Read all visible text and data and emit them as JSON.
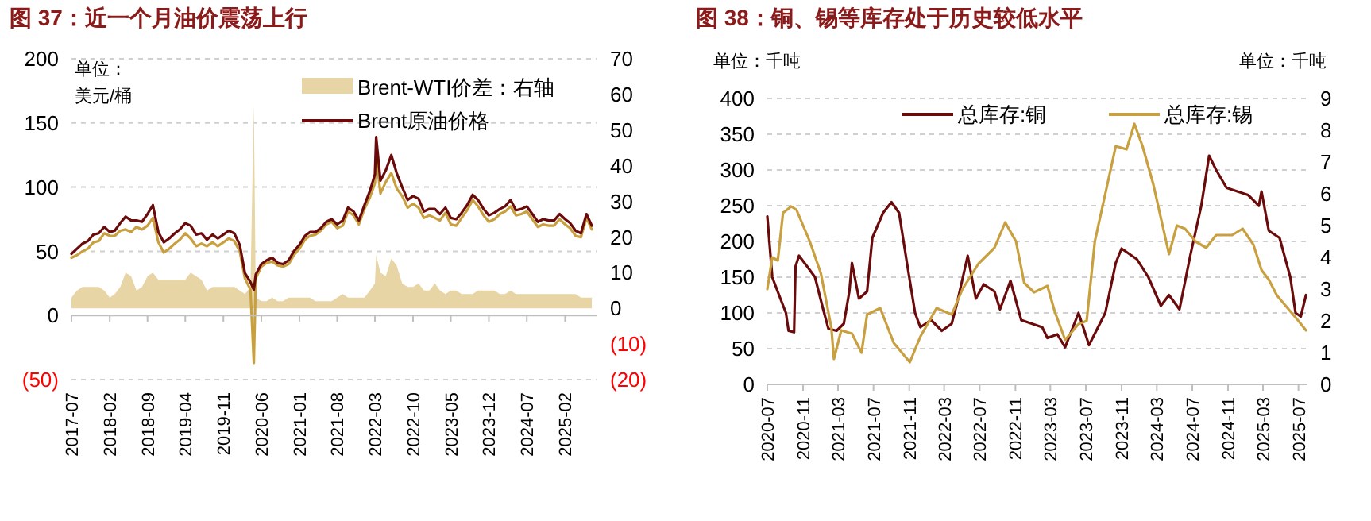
{
  "chart_data": [
    {
      "type": "line",
      "title": "图 37：近一个月油价震荡上行",
      "ylabel": "单位：美元/桶",
      "x": [
        "2017-07",
        "2017-08",
        "2017-09",
        "2017-10",
        "2017-11",
        "2017-12",
        "2018-01",
        "2018-02",
        "2018-03",
        "2018-04",
        "2018-05",
        "2018-06",
        "2018-07",
        "2018-08",
        "2018-09",
        "2018-10",
        "2018-11",
        "2018-12",
        "2019-01",
        "2019-02",
        "2019-03",
        "2019-04",
        "2019-05",
        "2019-06",
        "2019-07",
        "2019-08",
        "2019-09",
        "2019-10",
        "2019-11",
        "2019-12",
        "2020-01",
        "2020-02",
        "2020-03",
        "2020-04",
        "2020-04-20",
        "2020-05",
        "2020-06",
        "2020-07",
        "2020-08",
        "2020-09",
        "2020-10",
        "2020-11",
        "2020-12",
        "2021-01",
        "2021-02",
        "2021-03",
        "2021-04",
        "2021-05",
        "2021-06",
        "2021-07",
        "2021-08",
        "2021-09",
        "2021-10",
        "2021-11",
        "2021-12",
        "2022-01",
        "2022-02",
        "2022-03",
        "2022-03-08",
        "2022-04",
        "2022-05",
        "2022-06",
        "2022-07",
        "2022-08",
        "2022-09",
        "2022-10",
        "2022-11",
        "2022-12",
        "2023-01",
        "2023-02",
        "2023-03",
        "2023-04",
        "2023-05",
        "2023-06",
        "2023-07",
        "2023-08",
        "2023-09",
        "2023-10",
        "2023-11",
        "2023-12",
        "2024-01",
        "2024-02",
        "2024-03",
        "2024-04",
        "2024-05",
        "2024-06",
        "2024-07",
        "2024-08",
        "2024-09",
        "2024-10",
        "2024-11",
        "2024-12",
        "2025-01",
        "2025-02",
        "2025-03",
        "2025-04",
        "2025-05",
        "2025-06",
        "2025-07"
      ],
      "series": [
        {
          "name": "Brent-WTI价差：右轴",
          "type": "area",
          "axis": "y2",
          "color": "#e8d5a6",
          "values": [
            3,
            5,
            6,
            6,
            6,
            6,
            5,
            3,
            4,
            6,
            10,
            9,
            5,
            6,
            9,
            10,
            8,
            8,
            8,
            8,
            8,
            8,
            10,
            9,
            8,
            5,
            6,
            6,
            6,
            6,
            6,
            5,
            4,
            6,
            57,
            3,
            2,
            2,
            3,
            2,
            2,
            3,
            3,
            3,
            3,
            3,
            2,
            2,
            2,
            2,
            3,
            4,
            3,
            3,
            3,
            3,
            5,
            7,
            15,
            10,
            9,
            14,
            12,
            7,
            6,
            6,
            7,
            5,
            5,
            7,
            5,
            4,
            5,
            5,
            4,
            4,
            4,
            5,
            5,
            5,
            5,
            4,
            4,
            5,
            4,
            4,
            4,
            4,
            4,
            4,
            4,
            4,
            4,
            4,
            4,
            4,
            3,
            3,
            3
          ]
        },
        {
          "color": "#c9a040",
          "values": [
            45,
            47,
            50,
            52,
            57,
            58,
            64,
            62,
            62,
            66,
            67,
            65,
            69,
            67,
            70,
            76,
            57,
            49,
            52,
            56,
            59,
            64,
            60,
            54,
            56,
            54,
            57,
            54,
            57,
            60,
            58,
            50,
            29,
            20,
            -37,
            29,
            38,
            41,
            42,
            39,
            38,
            40,
            47,
            52,
            59,
            62,
            63,
            66,
            71,
            73,
            68,
            70,
            81,
            78,
            71,
            83,
            92,
            103,
            124,
            95,
            104,
            111,
            99,
            93,
            84,
            87,
            84,
            76,
            78,
            76,
            74,
            80,
            71,
            70,
            76,
            82,
            90,
            85,
            78,
            73,
            75,
            79,
            81,
            85,
            78,
            79,
            81,
            75,
            69,
            71,
            70,
            70,
            75,
            71,
            68,
            62,
            61,
            76,
            67
          ]
        },
        {
          "name": "Brent原油价格",
          "color": "#6b0a0a",
          "values": [
            48,
            52,
            56,
            58,
            63,
            64,
            69,
            65,
            66,
            72,
            77,
            74,
            74,
            73,
            79,
            86,
            65,
            57,
            60,
            64,
            67,
            72,
            70,
            63,
            64,
            59,
            63,
            60,
            63,
            66,
            64,
            55,
            33,
            26,
            20,
            32,
            40,
            43,
            45,
            41,
            40,
            43,
            50,
            55,
            62,
            65,
            65,
            68,
            73,
            75,
            71,
            74,
            84,
            81,
            74,
            86,
            97,
            110,
            139,
            105,
            113,
            125,
            111,
            100,
            90,
            93,
            91,
            81,
            83,
            83,
            79,
            84,
            76,
            75,
            80,
            86,
            94,
            90,
            83,
            78,
            80,
            83,
            85,
            90,
            82,
            83,
            85,
            79,
            73,
            75,
            74,
            74,
            79,
            75,
            72,
            66,
            64,
            79,
            70
          ]
        }
      ],
      "xlim": [
        "2017-07",
        "2025-08"
      ],
      "xticks": [
        "2017-07",
        "2018-02",
        "2018-09",
        "2019-04",
        "2019-11",
        "2020-06",
        "2021-01",
        "2021-08",
        "2022-03",
        "2022-10",
        "2023-05",
        "2023-12",
        "2024-07",
        "2025-02"
      ],
      "ylim": [
        -50,
        200
      ],
      "yticks": [
        {
          "value": -50,
          "label": "(50)"
        },
        0,
        50,
        100,
        150,
        200
      ],
      "y2lim": [
        -20,
        70
      ],
      "y2ticks": [
        {
          "value": -20,
          "label": "(20)"
        },
        {
          "value": -10,
          "label": "(10)"
        },
        0,
        10,
        20,
        30,
        40,
        50,
        60,
        70
      ],
      "grid": "y",
      "legend": "top"
    },
    {
      "type": "line",
      "title": "图 38：铜、锡等库存处于历史较低水平",
      "ylabel": "单位：千吨",
      "y2label": "单位：千吨",
      "series": [
        {
          "name": "总库存:铜",
          "color": "#6b0a0a",
          "x": [
            "2020-07-01",
            "2020-07-18",
            "2020-08-15",
            "2020-09-03",
            "2020-09-12",
            "2020-10-01",
            "2020-10-06",
            "2020-10-18",
            "2020-11-15",
            "2020-12-12",
            "2021-01-09",
            "2021-01-27",
            "2021-02-24",
            "2021-03-21",
            "2021-04-09",
            "2021-04-18",
            "2021-05-12",
            "2021-06-09",
            "2021-06-27",
            "2021-08-03",
            "2021-09-01",
            "2021-09-27",
            "2021-10-24",
            "2021-11-21",
            "2021-12-09",
            "2022-01-15",
            "2022-02-21",
            "2022-03-27",
            "2022-04-15",
            "2022-05-21",
            "2022-06-18",
            "2022-07-15",
            "2022-08-21",
            "2022-09-09",
            "2022-10-15",
            "2022-11-21",
            "2022-12-27",
            "2023-02-01",
            "2023-02-19",
            "2023-03-25",
            "2023-04-21",
            "2023-06-06",
            "2023-07-12",
            "2023-09-06",
            "2023-10-12",
            "2023-11-01",
            "2023-12-24",
            "2024-02-01",
            "2024-03-15",
            "2024-04-12",
            "2024-05-18",
            "2024-06-24",
            "2024-08-01",
            "2024-08-28",
            "2024-09-21",
            "2024-10-27",
            "2025-01-09",
            "2025-02-15",
            "2025-02-24",
            "2025-03-21",
            "2025-04-27",
            "2025-06-03",
            "2025-06-21",
            "2025-07-09",
            "2025-07-27"
          ],
          "values": [
            235,
            150,
            120,
            100,
            75,
            73,
            165,
            180,
            165,
            150,
            105,
            78,
            75,
            85,
            130,
            170,
            120,
            130,
            205,
            240,
            255,
            240,
            170,
            100,
            80,
            90,
            75,
            85,
            115,
            180,
            120,
            140,
            130,
            105,
            145,
            90,
            85,
            80,
            65,
            70,
            52,
            100,
            55,
            100,
            170,
            190,
            175,
            150,
            110,
            125,
            105,
            180,
            250,
            320,
            300,
            275,
            265,
            250,
            270,
            215,
            205,
            150,
            100,
            95,
            125
          ]
        },
        {
          "name": "总库存:锡",
          "color": "#c9a040",
          "axis": "y2",
          "x": [
            "2020-07-01",
            "2020-07-18",
            "2020-08-06",
            "2020-08-24",
            "2020-09-21",
            "2020-10-09",
            "2020-11-24",
            "2021-01-01",
            "2021-02-06",
            "2021-02-15",
            "2021-03-12",
            "2021-04-18",
            "2021-05-21",
            "2021-06-09",
            "2021-07-24",
            "2021-09-09",
            "2021-11-03",
            "2021-12-09",
            "2022-02-03",
            "2022-03-27",
            "2022-05-03",
            "2022-06-27",
            "2022-08-21",
            "2022-09-27",
            "2022-11-03",
            "2022-12-01",
            "2023-01-04",
            "2023-02-19",
            "2023-03-16",
            "2023-04-21",
            "2023-06-06",
            "2023-07-04",
            "2023-08-01",
            "2023-09-06",
            "2023-10-12",
            "2023-11-18",
            "2023-12-15",
            "2024-01-12",
            "2024-02-18",
            "2024-04-12",
            "2024-05-09",
            "2024-06-06",
            "2024-07-12",
            "2024-08-18",
            "2024-09-21",
            "2024-11-15",
            "2024-12-21",
            "2025-01-27",
            "2025-02-24",
            "2025-03-21",
            "2025-04-18",
            "2025-06-03",
            "2025-07-01",
            "2025-07-27"
          ],
          "values": [
            3.0,
            4.0,
            3.9,
            5.4,
            5.6,
            5.5,
            4.5,
            3.5,
            1.8,
            0.8,
            1.7,
            1.6,
            1.0,
            2.2,
            2.4,
            1.3,
            0.7,
            1.5,
            2.4,
            2.2,
            3.0,
            3.8,
            4.3,
            5.1,
            4.5,
            3.2,
            2.9,
            3.1,
            2.3,
            1.4,
            1.9,
            2.0,
            4.5,
            6.0,
            7.5,
            7.4,
            8.2,
            7.5,
            6.3,
            4.1,
            5.0,
            4.9,
            4.5,
            4.3,
            4.7,
            4.7,
            4.9,
            4.4,
            3.6,
            3.3,
            2.8,
            2.3,
            2.0,
            1.7
          ]
        }
      ],
      "xlim": [
        "2020-07-01",
        "2025-08-01"
      ],
      "xticks": [
        "2020-07",
        "2020-11",
        "2021-03",
        "2021-07",
        "2021-11",
        "2022-03",
        "2022-07",
        "2022-11",
        "2023-03",
        "2023-07",
        "2023-11",
        "2024-03",
        "2024-07",
        "2024-11",
        "2025-03",
        "2025-07"
      ],
      "ylim": [
        0,
        400
      ],
      "yticks": [
        0,
        50,
        100,
        150,
        200,
        250,
        300,
        350,
        400
      ],
      "y2lim": [
        0,
        9
      ],
      "y2ticks": [
        0,
        1,
        2,
        3,
        4,
        5,
        6,
        7,
        8,
        9
      ],
      "grid": "y",
      "legend": "top"
    }
  ]
}
